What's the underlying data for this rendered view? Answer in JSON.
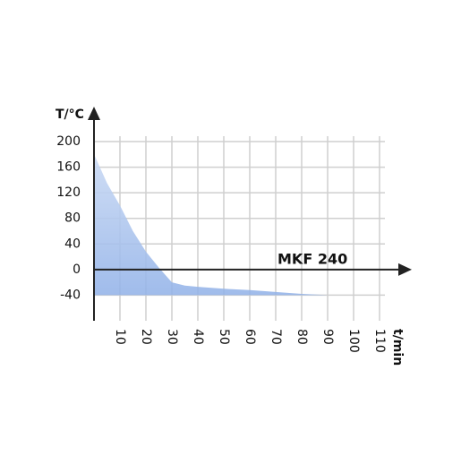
{
  "chart_data": {
    "type": "area",
    "y_label": "T/°C",
    "x_label": "t/min",
    "annotation": "MKF 240",
    "x": [
      0,
      5,
      10,
      15,
      20,
      25,
      30,
      35,
      40,
      50,
      60,
      70,
      80,
      90
    ],
    "values": [
      180,
      135,
      100,
      60,
      28,
      3,
      -20,
      -25,
      -27,
      -30,
      -32,
      -35,
      -38,
      -40
    ],
    "color": "#8fb0e8",
    "xlim": [
      0,
      110
    ],
    "xticks": [
      10,
      20,
      30,
      40,
      50,
      60,
      70,
      80,
      90,
      100,
      110
    ],
    "ylim": [
      -80,
      200
    ],
    "yticks": [
      -40,
      0,
      40,
      80,
      120,
      160,
      200
    ],
    "grid": true
  }
}
